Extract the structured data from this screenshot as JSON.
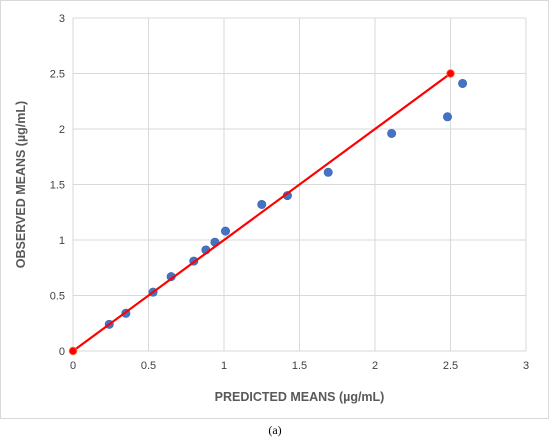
{
  "chart_data": {
    "type": "scatter",
    "title": "",
    "xlabel": "PREDICTED MEANS (µg/mL)",
    "ylabel": "OBSERVED MEANS (µg/mL)",
    "xlim": [
      0,
      3
    ],
    "ylim": [
      0,
      3
    ],
    "x_ticks": [
      "0",
      "0.5",
      "1",
      "1.5",
      "2",
      "2.5",
      "3"
    ],
    "y_ticks": [
      "0",
      "0.5",
      "1",
      "1.5",
      "2",
      "2.5",
      "3"
    ],
    "grid": true,
    "legend": "none",
    "series": [
      {
        "type": "scatter",
        "color": "#4472c4",
        "x": [
          0.24,
          0.35,
          0.53,
          0.65,
          0.8,
          0.88,
          0.94,
          1.01,
          1.25,
          1.42,
          1.69,
          2.11,
          2.48,
          2.58
        ],
        "y": [
          0.24,
          0.34,
          0.53,
          0.67,
          0.81,
          0.91,
          0.98,
          1.08,
          1.32,
          1.4,
          1.61,
          1.96,
          2.11,
          2.41
        ]
      },
      {
        "type": "line",
        "color": "#ff0000",
        "x": [
          0,
          2.5
        ],
        "y": [
          0,
          2.5
        ]
      }
    ]
  },
  "caption": "(a)"
}
